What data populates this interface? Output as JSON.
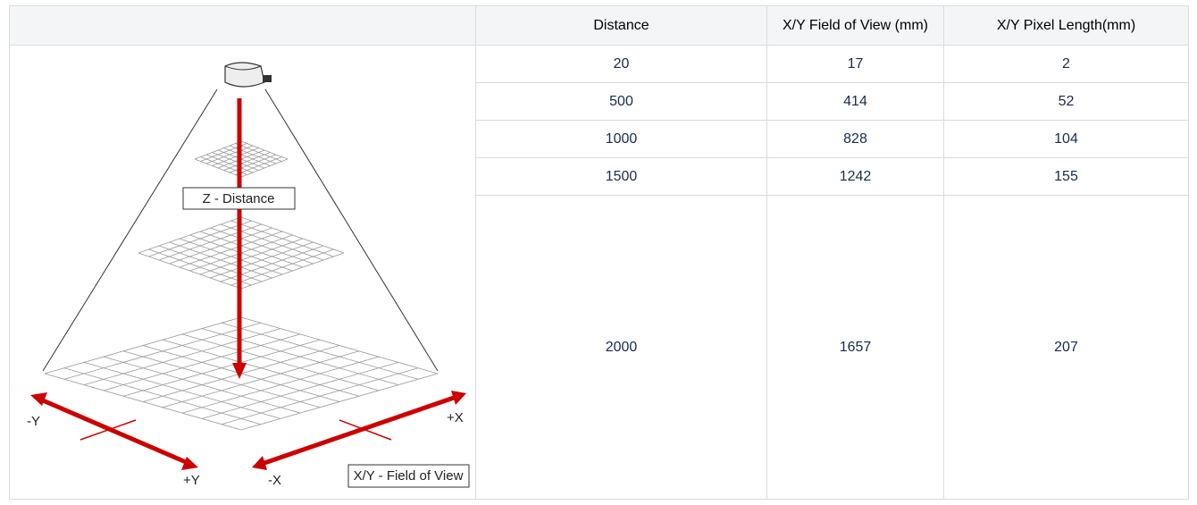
{
  "table": {
    "header": [
      "Distance",
      "X/Y Field of View (mm)",
      "X/Y Pixel Length(mm)"
    ],
    "rows": [
      [
        20,
        17,
        2
      ],
      [
        500,
        414,
        52
      ],
      [
        1000,
        828,
        104
      ],
      [
        1500,
        1242,
        155
      ],
      [
        2000,
        1657,
        207
      ]
    ]
  },
  "diagram": {
    "z_label": "Z - Distance",
    "xy_label": "X/Y - Field of View",
    "minus_y": "-Y",
    "plus_y": "+Y",
    "minus_x": "-X",
    "plus_x": "+X"
  }
}
